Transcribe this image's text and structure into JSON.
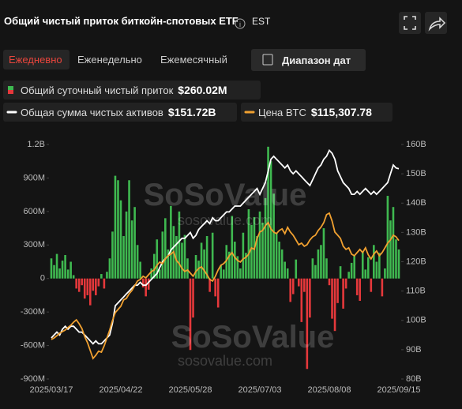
{
  "header": {
    "title": "Общий чистый приток биткойн-спотовых ETF",
    "timezone": "EST"
  },
  "tabs": [
    "Ежедневно",
    "Еженедельно",
    "Ежемесячный"
  ],
  "date_range_button": "Диапазон дат",
  "watermark": {
    "logo": "SoSoValue",
    "url": "sosovalue.com"
  },
  "chart_data": {
    "type": "bar-line",
    "categories": [
      "2025/03/17",
      null,
      null,
      null,
      null,
      null,
      null,
      null,
      null,
      null,
      null,
      null,
      null,
      null,
      null,
      null,
      null,
      null,
      null,
      null,
      null,
      null,
      null,
      null,
      null,
      "2025/04/22",
      null,
      null,
      null,
      null,
      null,
      null,
      null,
      null,
      null,
      null,
      null,
      null,
      null,
      null,
      null,
      null,
      null,
      null,
      null,
      null,
      null,
      null,
      null,
      null,
      "2025/05/28",
      null,
      null,
      null,
      null,
      null,
      null,
      null,
      null,
      null,
      null,
      null,
      null,
      null,
      null,
      null,
      null,
      null,
      null,
      null,
      null,
      null,
      null,
      null,
      null,
      "2025/07/03",
      null,
      null,
      null,
      null,
      null,
      null,
      null,
      null,
      null,
      null,
      null,
      null,
      null,
      null,
      null,
      null,
      null,
      null,
      null,
      null,
      null,
      null,
      null,
      null,
      "2025/08/08",
      null,
      null,
      null,
      null,
      null,
      null,
      null,
      null,
      null,
      null,
      null,
      null,
      null,
      null,
      null,
      null,
      null,
      null,
      null,
      null,
      null,
      null,
      null,
      null,
      "2025/09/15"
    ],
    "ylim": [
      -900,
      1200
    ],
    "yticks": [
      {
        "value": 1200,
        "label": "1.2B"
      },
      {
        "value": 900,
        "label": "900M"
      },
      {
        "value": 600,
        "label": "600M"
      },
      {
        "value": 300,
        "label": "300M"
      },
      0,
      {
        "value": -300,
        "label": "-300M"
      },
      {
        "value": -600,
        "label": "-600M"
      },
      {
        "value": -900,
        "label": "-900M"
      }
    ],
    "y2lim": [
      80,
      160
    ],
    "y2ticks": [
      {
        "value": 160,
        "label": "160B"
      },
      {
        "value": 150,
        "label": "150B"
      },
      {
        "value": 140,
        "label": "140B"
      },
      {
        "value": 130,
        "label": "130B"
      },
      {
        "value": 120,
        "label": "120B"
      },
      {
        "value": 110,
        "label": "110B"
      },
      {
        "value": 100,
        "label": "100B"
      },
      {
        "value": 90,
        "label": "90B"
      },
      {
        "value": 80,
        "label": "80B"
      }
    ],
    "y3lim": [
      71500,
      145700
    ],
    "series": [
      {
        "name": "Общий суточный чистый приток",
        "legend_value": "$260.02M",
        "type": "bar",
        "color": "#3fb950",
        "negative_color": "#e5383b",
        "values": [
          180,
          120,
          220,
          90,
          160,
          210,
          80,
          150,
          30,
          -90,
          -120,
          -60,
          -180,
          -150,
          -240,
          -110,
          -150,
          -70,
          40,
          -90,
          60,
          180,
          420,
          920,
          880,
          700,
          380,
          600,
          880,
          520,
          640,
          300,
          150,
          -80,
          -160,
          -100,
          90,
          220,
          350,
          80,
          420,
          540,
          260,
          650,
          470,
          380,
          600,
          320,
          390,
          180,
          -640,
          -350,
          210,
          160,
          320,
          260,
          380,
          -120,
          410,
          -160,
          -260,
          120,
          80,
          300,
          240,
          560,
          330,
          200,
          90,
          410,
          230,
          620,
          480,
          550,
          380,
          600,
          500,
          720,
          1180,
          1050,
          760,
          410,
          330,
          260,
          150,
          90,
          -210,
          -140,
          170,
          -70,
          -390,
          -120,
          -810,
          -350,
          180,
          120,
          260,
          300,
          450,
          180,
          -60,
          -360,
          -470,
          -220,
          110,
          -270,
          -90,
          60,
          140,
          210,
          -150,
          -200,
          240,
          80,
          190,
          -120,
          300,
          150,
          230,
          -160,
          90,
          740,
          520,
          640,
          350,
          260.02
        ]
      },
      {
        "name": "Общая сумма чистых активов",
        "legend_value": "$151.72B",
        "type": "line",
        "axis": "y2",
        "color": "#ffffff",
        "values": [
          94,
          95,
          96,
          95,
          97,
          98,
          97,
          98,
          98,
          97,
          96,
          96,
          95,
          94,
          93,
          92,
          93,
          92,
          92,
          93,
          94,
          95,
          99,
          105,
          106,
          107,
          108,
          109,
          110,
          111,
          112,
          112,
          113,
          112,
          112,
          113,
          114,
          115,
          116,
          118,
          120,
          121,
          122,
          124,
          125,
          126,
          127,
          128,
          128,
          129,
          130,
          128,
          129,
          131,
          132,
          133,
          134,
          133,
          135,
          134,
          134,
          135,
          136,
          137,
          137,
          138,
          139,
          139,
          139,
          140,
          141,
          142,
          143,
          144,
          145,
          143,
          145,
          147,
          151,
          155,
          156,
          155,
          154,
          153,
          152,
          153,
          151,
          150,
          151,
          150,
          149,
          148,
          147,
          146,
          148,
          150,
          152,
          153,
          155,
          156,
          158,
          157,
          155,
          151,
          149,
          147,
          146,
          145,
          143,
          143,
          144,
          143,
          144,
          145,
          144,
          143,
          144,
          143,
          144,
          145,
          146,
          147,
          150,
          153,
          152,
          151.72
        ]
      },
      {
        "name": "Цена BTC",
        "legend_value": "$115,307.78",
        "type": "line",
        "axis": "y3",
        "color": "#f0a030",
        "values": [
          84000,
          84500,
          85200,
          86000,
          86500,
          87000,
          87800,
          88500,
          89500,
          90200,
          89000,
          87500,
          85000,
          83000,
          80500,
          78000,
          79000,
          80300,
          80000,
          82000,
          84500,
          87000,
          90000,
          92500,
          93500,
          94500,
          96500,
          97000,
          98500,
          99500,
          101000,
          102500,
          103000,
          104000,
          103500,
          104500,
          105500,
          106000,
          107500,
          108500,
          108000,
          109500,
          110500,
          111000,
          111800,
          109000,
          108000,
          106500,
          105500,
          106000,
          105000,
          104000,
          105500,
          106500,
          107000,
          105800,
          104500,
          103000,
          102500,
          104000,
          106000,
          107500,
          108000,
          109000,
          110500,
          111500,
          110000,
          109000,
          108500,
          109500,
          110000,
          111000,
          113000,
          112500,
          116000,
          118000,
          118500,
          120000,
          121000,
          119000,
          118000,
          117500,
          118500,
          119000,
          117500,
          119500,
          118000,
          117000,
          115500,
          114000,
          114500,
          113500,
          114000,
          115500,
          116500,
          117000,
          118500,
          119500,
          121000,
          123500,
          124000,
          121500,
          118000,
          117000,
          116000,
          113500,
          112500,
          113000,
          111000,
          110500,
          111500,
          112500,
          111500,
          113000,
          110800,
          109500,
          111000,
          112000,
          110500,
          111500,
          113000,
          114500,
          115500,
          117000,
          116500,
          115307.78
        ]
      }
    ]
  }
}
